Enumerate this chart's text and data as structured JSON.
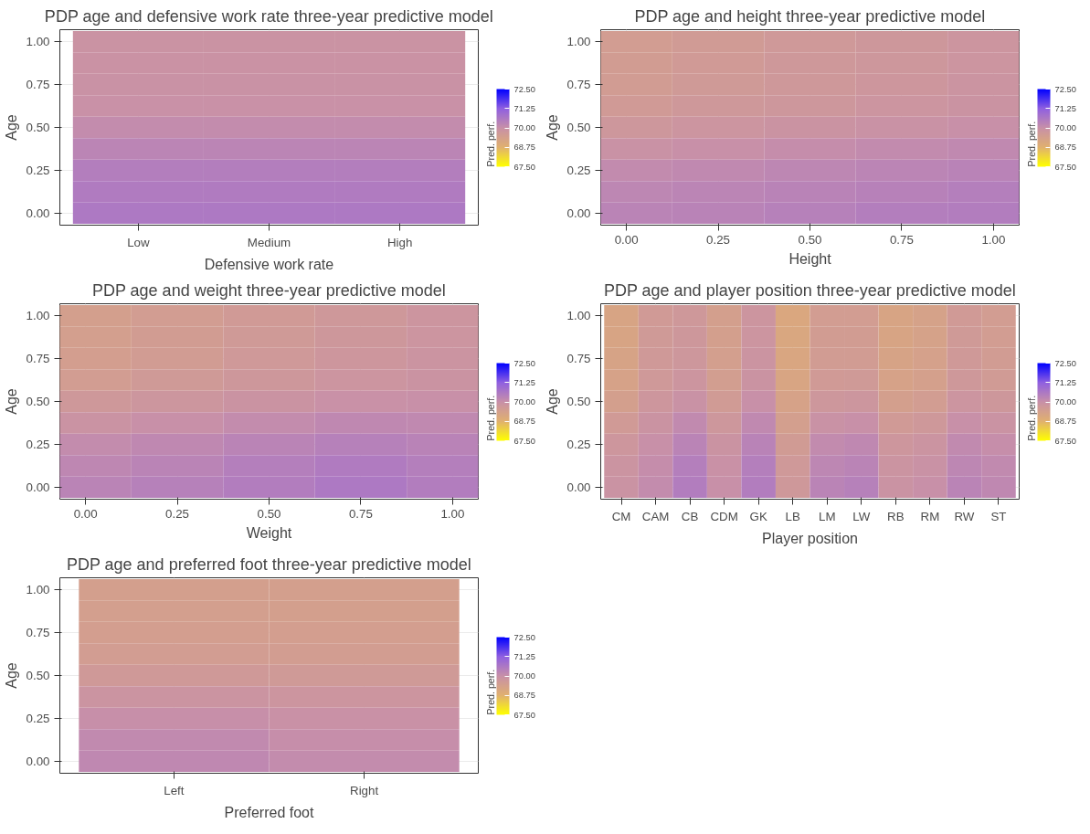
{
  "chart_data": [
    {
      "type": "heatmap",
      "title": "PDP age and defensive work rate three-year predictive model",
      "xlabel": "Defensive work rate",
      "ylabel": "Age",
      "clabel": "Pred. perf.",
      "categories": [
        "Low",
        "Medium",
        "High"
      ],
      "y": [
        1.0,
        0.875,
        0.75,
        0.625,
        0.5,
        0.375,
        0.25,
        0.125,
        0.0
      ],
      "cells": [
        [
          69.9,
          69.9,
          69.9
        ],
        [
          69.91,
          69.91,
          69.91
        ],
        [
          69.94,
          69.94,
          69.94
        ],
        [
          69.98,
          69.98,
          69.98
        ],
        [
          70.11,
          70.11,
          70.11
        ],
        [
          70.29,
          70.29,
          70.29
        ],
        [
          70.45,
          70.45,
          70.45
        ],
        [
          70.54,
          70.54,
          70.54
        ],
        [
          70.6,
          70.6,
          70.6
        ]
      ],
      "ylim": [
        -0.07,
        1.07
      ],
      "yticks": [
        {
          "value": 0,
          "label": "0.00"
        },
        {
          "value": 0.25,
          "label": "0.25"
        },
        {
          "value": 0.5,
          "label": "0.50"
        },
        {
          "value": 0.75,
          "label": "0.75"
        },
        {
          "value": 1,
          "label": "1.00"
        }
      ],
      "colors": [
        "#ffff00",
        "#e0b070",
        "#c890a8",
        "#9060e0",
        "#0000ff"
      ],
      "clim": [
        67.5,
        72.5
      ],
      "cticks": [
        {
          "value": 67.5,
          "label": "67.50"
        },
        {
          "value": 68.75,
          "label": "68.75"
        },
        {
          "value": 70,
          "label": "70.00"
        },
        {
          "value": 71.25,
          "label": "71.25"
        },
        {
          "value": 72.5,
          "label": "72.50"
        }
      ],
      "grid": true
    },
    {
      "type": "heatmap",
      "title": "PDP age and height three-year predictive model",
      "xlabel": "Height",
      "ylabel": "Age",
      "clabel": "Pred. perf.",
      "x": [
        0,
        0.25,
        0.5,
        0.75,
        1.0
      ],
      "y": [
        1.0,
        0.875,
        0.75,
        0.625,
        0.5,
        0.375,
        0.25,
        0.125,
        0.0
      ],
      "cells": [
        [
          69.5,
          69.58,
          69.65,
          69.72,
          69.8
        ],
        [
          69.52,
          69.6,
          69.67,
          69.74,
          69.81
        ],
        [
          69.54,
          69.62,
          69.69,
          69.76,
          69.84
        ],
        [
          69.6,
          69.67,
          69.74,
          69.81,
          69.88
        ],
        [
          69.74,
          69.81,
          69.88,
          69.94,
          70.01
        ],
        [
          69.94,
          70.0,
          70.06,
          70.12,
          70.19
        ],
        [
          70.12,
          70.18,
          70.24,
          70.29,
          70.35
        ],
        [
          70.24,
          70.29,
          70.34,
          70.39,
          70.44
        ],
        [
          70.3,
          70.35,
          70.4,
          70.45,
          70.5
        ]
      ],
      "xlim": [
        -0.07,
        1.07
      ],
      "xticks": [
        {
          "value": 0,
          "label": "0.00"
        },
        {
          "value": 0.25,
          "label": "0.25"
        },
        {
          "value": 0.5,
          "label": "0.50"
        },
        {
          "value": 0.75,
          "label": "0.75"
        },
        {
          "value": 1,
          "label": "1.00"
        }
      ],
      "ylim": [
        -0.07,
        1.07
      ],
      "yticks": [
        {
          "value": 0,
          "label": "0.00"
        },
        {
          "value": 0.25,
          "label": "0.25"
        },
        {
          "value": 0.5,
          "label": "0.50"
        },
        {
          "value": 0.75,
          "label": "0.75"
        },
        {
          "value": 1,
          "label": "1.00"
        }
      ],
      "colors": [
        "#ffff00",
        "#e0b070",
        "#c890a8",
        "#9060e0",
        "#0000ff"
      ],
      "clim": [
        67.5,
        72.5
      ],
      "cticks": [
        {
          "value": 67.5,
          "label": "67.50"
        },
        {
          "value": 68.75,
          "label": "68.75"
        },
        {
          "value": 70,
          "label": "70.00"
        },
        {
          "value": 71.25,
          "label": "71.25"
        },
        {
          "value": 72.5,
          "label": "72.50"
        }
      ],
      "grid": true
    },
    {
      "type": "heatmap",
      "title": "PDP age and weight three-year predictive model",
      "xlabel": "Weight",
      "ylabel": "Age",
      "clabel": "Pred. perf.",
      "x": [
        0,
        0.25,
        0.5,
        0.75,
        1.0
      ],
      "y": [
        1.0,
        0.875,
        0.75,
        0.625,
        0.5,
        0.375,
        0.25,
        0.125,
        0.0
      ],
      "cells": [
        [
          69.4,
          69.5,
          69.6,
          69.7,
          69.8
        ],
        [
          69.42,
          69.52,
          69.62,
          69.72,
          69.81
        ],
        [
          69.45,
          69.55,
          69.65,
          69.75,
          69.84
        ],
        [
          69.51,
          69.61,
          69.71,
          69.81,
          69.88
        ],
        [
          69.67,
          69.77,
          69.87,
          69.97,
          70.01
        ],
        [
          69.9,
          70.0,
          70.1,
          70.2,
          70.19
        ],
        [
          70.1,
          70.2,
          70.3,
          70.4,
          70.35
        ],
        [
          70.23,
          70.33,
          70.43,
          70.53,
          70.44
        ],
        [
          70.3,
          70.4,
          70.5,
          70.6,
          70.5
        ]
      ],
      "xlim": [
        -0.07,
        1.07
      ],
      "xticks": [
        {
          "value": 0,
          "label": "0.00"
        },
        {
          "value": 0.25,
          "label": "0.25"
        },
        {
          "value": 0.5,
          "label": "0.50"
        },
        {
          "value": 0.75,
          "label": "0.75"
        },
        {
          "value": 1,
          "label": "1.00"
        }
      ],
      "ylim": [
        -0.07,
        1.07
      ],
      "yticks": [
        {
          "value": 0,
          "label": "0.00"
        },
        {
          "value": 0.25,
          "label": "0.25"
        },
        {
          "value": 0.5,
          "label": "0.50"
        },
        {
          "value": 0.75,
          "label": "0.75"
        },
        {
          "value": 1,
          "label": "1.00"
        }
      ],
      "colors": [
        "#ffff00",
        "#e0b070",
        "#c890a8",
        "#9060e0",
        "#0000ff"
      ],
      "clim": [
        67.5,
        72.5
      ],
      "cticks": [
        {
          "value": 67.5,
          "label": "67.50"
        },
        {
          "value": 68.75,
          "label": "68.75"
        },
        {
          "value": 70,
          "label": "70.00"
        },
        {
          "value": 71.25,
          "label": "71.25"
        },
        {
          "value": 72.5,
          "label": "72.50"
        }
      ],
      "grid": true
    },
    {
      "type": "heatmap",
      "title": "PDP age and player position three-year predictive model",
      "xlabel": "Player position",
      "ylabel": "Age",
      "clabel": "Pred. perf.",
      "categories": [
        "CM",
        "CAM",
        "CB",
        "CDM",
        "GK",
        "LB",
        "LM",
        "LW",
        "RB",
        "RM",
        "RW",
        "ST"
      ],
      "y": [
        1.0,
        0.875,
        0.75,
        0.625,
        0.5,
        0.375,
        0.25,
        0.125,
        0.0
      ],
      "cells": [
        [
          69.2,
          69.6,
          69.7,
          69.4,
          69.8,
          69.1,
          69.5,
          69.5,
          69.2,
          69.3,
          69.6,
          69.5
        ],
        [
          69.21,
          69.61,
          69.72,
          69.41,
          69.81,
          69.11,
          69.52,
          69.52,
          69.21,
          69.31,
          69.61,
          69.51
        ],
        [
          69.24,
          69.63,
          69.74,
          69.43,
          69.84,
          69.13,
          69.54,
          69.55,
          69.24,
          69.34,
          69.64,
          69.54
        ],
        [
          69.28,
          69.66,
          69.8,
          69.47,
          69.88,
          69.17,
          69.6,
          69.61,
          69.28,
          69.38,
          69.68,
          69.58
        ],
        [
          69.41,
          69.75,
          69.94,
          69.58,
          70.01,
          69.28,
          69.74,
          69.77,
          69.41,
          69.51,
          69.81,
          69.71
        ],
        [
          69.59,
          69.88,
          70.14,
          69.73,
          70.19,
          69.43,
          69.94,
          70.0,
          69.59,
          69.69,
          69.99,
          69.89
        ],
        [
          69.75,
          69.99,
          70.32,
          69.87,
          70.35,
          69.57,
          70.12,
          70.2,
          69.75,
          69.85,
          70.15,
          70.05
        ],
        [
          69.84,
          70.06,
          70.44,
          69.95,
          70.44,
          69.65,
          70.24,
          70.33,
          69.84,
          69.94,
          70.24,
          70.14
        ],
        [
          69.9,
          70.1,
          70.5,
          70.0,
          70.5,
          69.7,
          70.3,
          70.4,
          69.9,
          70.0,
          70.3,
          70.2
        ]
      ],
      "ylim": [
        -0.07,
        1.07
      ],
      "yticks": [
        {
          "value": 0,
          "label": "0.00"
        },
        {
          "value": 0.25,
          "label": "0.25"
        },
        {
          "value": 0.5,
          "label": "0.50"
        },
        {
          "value": 0.75,
          "label": "0.75"
        },
        {
          "value": 1,
          "label": "1.00"
        }
      ],
      "colors": [
        "#ffff00",
        "#e0b070",
        "#c890a8",
        "#9060e0",
        "#0000ff"
      ],
      "clim": [
        67.5,
        72.5
      ],
      "cticks": [
        {
          "value": 67.5,
          "label": "67.50"
        },
        {
          "value": 68.75,
          "label": "68.75"
        },
        {
          "value": 70,
          "label": "70.00"
        },
        {
          "value": 71.25,
          "label": "71.25"
        },
        {
          "value": 72.5,
          "label": "72.50"
        }
      ],
      "grid": true
    },
    {
      "type": "heatmap",
      "title": "PDP age and preferred foot three-year predictive model",
      "xlabel": "Preferred foot",
      "ylabel": "Age",
      "clabel": "Pred. perf.",
      "categories": [
        "Left",
        "Right"
      ],
      "y": [
        1.0,
        0.875,
        0.75,
        0.625,
        0.5,
        0.375,
        0.25,
        0.125,
        0.0
      ],
      "cells": [
        [
          69.4,
          69.4
        ],
        [
          69.42,
          69.41
        ],
        [
          69.44,
          69.44
        ],
        [
          69.5,
          69.48
        ],
        [
          69.64,
          69.61
        ],
        [
          69.84,
          69.79
        ],
        [
          70.02,
          69.95
        ],
        [
          70.14,
          70.04
        ],
        [
          70.2,
          70.1
        ]
      ],
      "ylim": [
        -0.07,
        1.07
      ],
      "yticks": [
        {
          "value": 0,
          "label": "0.00"
        },
        {
          "value": 0.25,
          "label": "0.25"
        },
        {
          "value": 0.5,
          "label": "0.50"
        },
        {
          "value": 0.75,
          "label": "0.75"
        },
        {
          "value": 1,
          "label": "1.00"
        }
      ],
      "colors": [
        "#ffff00",
        "#e0b070",
        "#c890a8",
        "#9060e0",
        "#0000ff"
      ],
      "clim": [
        67.5,
        72.5
      ],
      "cticks": [
        {
          "value": 67.5,
          "label": "67.50"
        },
        {
          "value": 68.75,
          "label": "68.75"
        },
        {
          "value": 70,
          "label": "70.00"
        },
        {
          "value": 71.25,
          "label": "71.25"
        },
        {
          "value": 72.5,
          "label": "72.50"
        }
      ],
      "grid": true
    }
  ]
}
